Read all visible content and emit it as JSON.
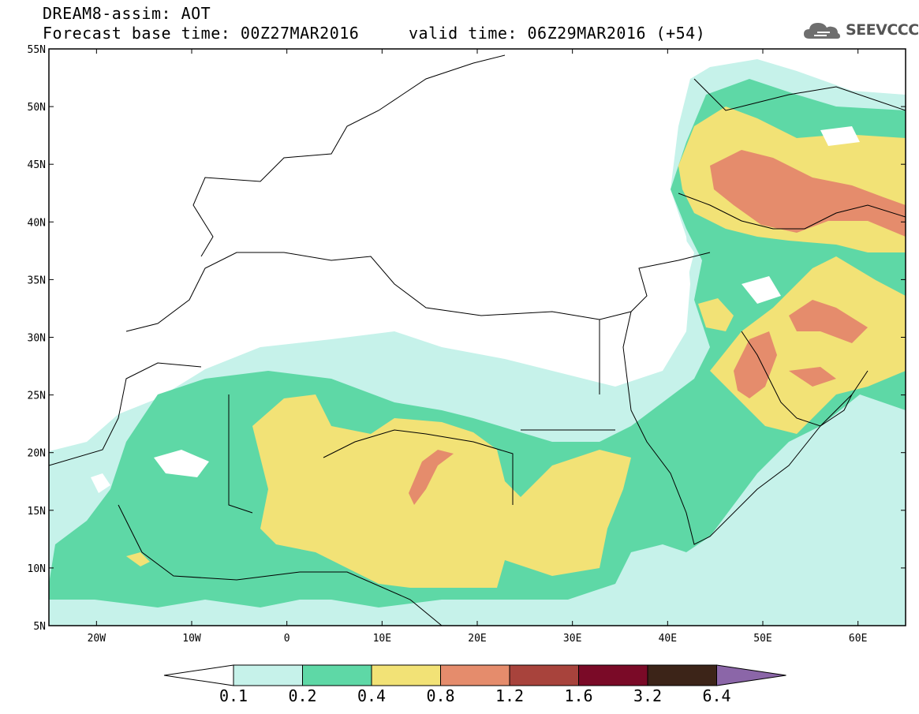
{
  "title": {
    "line1": "DREAM8-assim: AOT",
    "line2": "Forecast base time: 00Z27MAR2016     valid time: 06Z29MAR2016 (+54)"
  },
  "logo": {
    "text": "SEEVCCC",
    "icon": "cloud-icon"
  },
  "map": {
    "lat_labels": [
      "55N",
      "50N",
      "45N",
      "40N",
      "35N",
      "30N",
      "25N",
      "20N",
      "15N",
      "10N",
      "5N"
    ],
    "lon_labels": [
      "20W",
      "10W",
      "0",
      "10E",
      "20E",
      "30E",
      "40E",
      "50E",
      "60E"
    ],
    "lat_range": [
      5,
      55
    ],
    "lon_range": [
      -25,
      65
    ]
  },
  "colorbar": {
    "labels": [
      "0.1",
      "0.2",
      "0.4",
      "0.8",
      "1.2",
      "1.6",
      "3.2",
      "6.4"
    ],
    "colors": [
      "#c6f2ea",
      "#5ed8a6",
      "#f2e276",
      "#e58c6c",
      "#a8433c",
      "#7a0a27",
      "#3c2418",
      "#8b66a8"
    ]
  }
}
